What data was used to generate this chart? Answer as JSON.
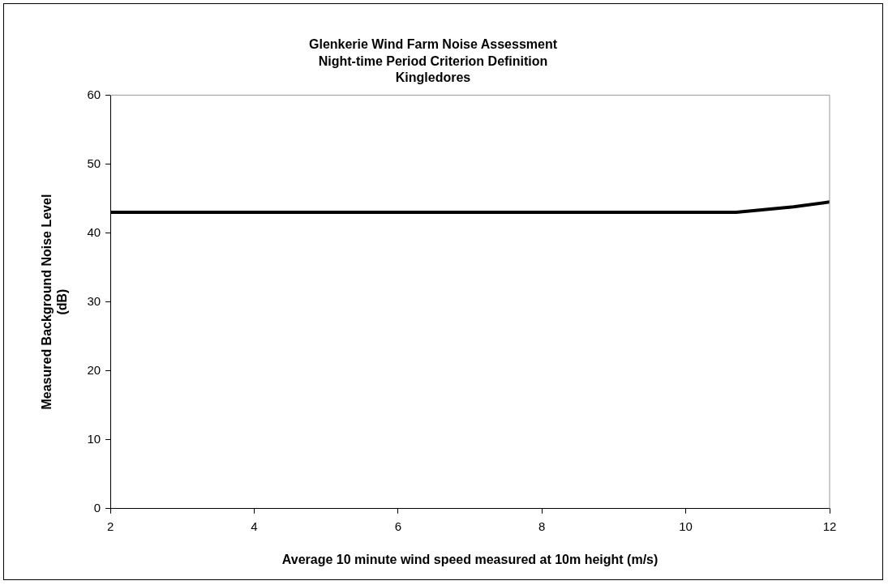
{
  "chart_data": {
    "type": "line",
    "title": "Glenkerie Wind Farm Noise Assessment\nNight-time Period Criterion Definition\nKingledores",
    "xlabel": "Average 10 minute wind speed measured at 10m height (m/s)",
    "ylabel": "Measured Background Noise Level\n(dB)",
    "x": [
      2,
      10.7,
      11,
      11.5,
      12
    ],
    "series": [
      {
        "color": "#000000",
        "values": [
          43,
          43,
          43.3,
          43.8,
          44.5
        ]
      }
    ],
    "xlim": [
      2,
      12
    ],
    "xticks": [
      2,
      4,
      6,
      8,
      10,
      12
    ],
    "ylim": [
      0,
      60
    ],
    "yticks": [
      0,
      10,
      20,
      30,
      40,
      50,
      60
    ],
    "grid": false,
    "legend": false,
    "marker": "none",
    "line_style": "solid"
  }
}
